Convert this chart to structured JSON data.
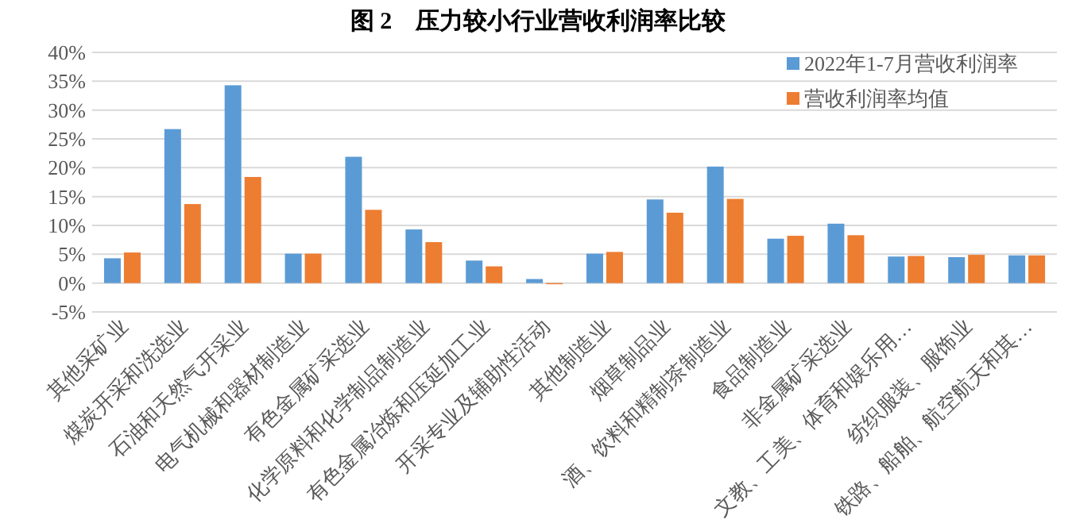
{
  "chart_data": {
    "type": "bar",
    "title": "图 2　压力较小行业营收利润率比较",
    "categories": [
      "其他采矿业",
      "煤炭开采和洗选业",
      "石油和天然气开采业",
      "电气机械和器材制造业",
      "有色金属矿采选业",
      "化学原料和化学制品制造业",
      "有色金属冶炼和压延加工业",
      "开采专业及辅助性活动",
      "其他制造业",
      "烟草制品业",
      "酒、饮料和精制茶制造业",
      "食品制造业",
      "非金属矿采选业",
      "文教、工美、体育和娱乐用…",
      "纺织服装、服饰业",
      "铁路、船舶、航空航天和其…"
    ],
    "series": [
      {
        "name": "2022年1-7月营收利润率",
        "color": "#5b9bd5",
        "values": [
          4.3,
          26.7,
          34.3,
          5.1,
          21.9,
          9.3,
          3.9,
          0.7,
          5.1,
          14.5,
          20.2,
          7.7,
          10.3,
          4.6,
          4.5,
          4.8
        ]
      },
      {
        "name": "营收利润率均值",
        "color": "#ed7d31",
        "values": [
          5.3,
          13.7,
          18.4,
          5.1,
          12.7,
          7.1,
          2.9,
          -0.2,
          5.4,
          12.2,
          14.6,
          8.2,
          8.3,
          4.7,
          4.9,
          4.8
        ]
      }
    ],
    "ylim": [
      -5,
      40
    ],
    "yticks": [
      {
        "value": -5,
        "label": "-5%"
      },
      {
        "value": 0,
        "label": "0%"
      },
      {
        "value": 5,
        "label": "5%"
      },
      {
        "value": 10,
        "label": "10%"
      },
      {
        "value": 15,
        "label": "15%"
      },
      {
        "value": 20,
        "label": "20%"
      },
      {
        "value": 25,
        "label": "25%"
      },
      {
        "value": 30,
        "label": "30%"
      },
      {
        "value": 35,
        "label": "35%"
      },
      {
        "value": 40,
        "label": "40%"
      }
    ],
    "grid": "y",
    "legend": "top right"
  }
}
